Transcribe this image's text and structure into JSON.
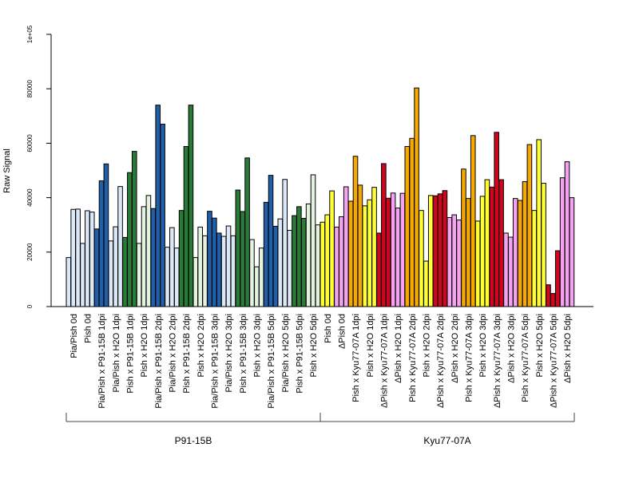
{
  "chart_data": {
    "type": "bar",
    "title": "",
    "ylabel": "Raw Signal",
    "ylim": [
      0,
      100000
    ],
    "yticks": [
      "0",
      "20000",
      "40000",
      "60000",
      "80000",
      "1e+05"
    ],
    "ytick_values": [
      0,
      20000,
      40000,
      60000,
      80000,
      100000
    ],
    "bars_per_group": 3,
    "categories": [
      "Pia/Pish 0d",
      "Pish 0d",
      "Pia/Pish x P91-15B 1dpi",
      "Pia/Pish x H2O 1dpi",
      "Pish x P91-15B 1dpi",
      "Pish x H2O 1dpi",
      "Pia/Pish x P91-15B 2dpi",
      "Pia/Pish x H2O 2dpi",
      "Pish x P91-15B 2dpi",
      "Pish x H2O 2dpi",
      "Pia/Pish x P91-15B 3dpi",
      "Pia/Pish x H2O 3dpi",
      "Pish x P91-15B 3dpi",
      "Pish x H2O 3dpi",
      "Pia/Pish x P91-15B 5dpi",
      "Pia/Pish x H2O 5dpi",
      "Pish x P91-15B 5dpi",
      "Pish x H2O 5dpi",
      "Pish 0d",
      "ΔPish 0d",
      "Pish x Kyu77-07A 1dpi",
      "Pish x H2O 1dpi",
      "ΔPish x Kyu77-07A 1dpi",
      "ΔPish x H2O 1dpi",
      "Pish x Kyu77-07A 2dpi",
      "Pish x H2O 2dpi",
      "ΔPish x Kyu77-07A 2dpi",
      "ΔPish x H2O 2dpi",
      "Pish x Kyu77-07A 3dpi",
      "Pish x H2O 3dpi",
      "ΔPish x Kyu77-07A 3dpi",
      "ΔPish x H2O 3dpi",
      "Pish x Kyu77-07A 5dpi",
      "Pish x H2O 5dpi",
      "ΔPish x Kyu77-07A 5dpi",
      "ΔPish x H2O 5dpi"
    ],
    "group_colors": [
      "#dbe8f8",
      "#dbe8f8",
      "#2060ab",
      "#dbe8f8",
      "#2a7a38",
      "#e4f2e0",
      "#2060ab",
      "#dbe8f8",
      "#2a7a38",
      "#e4f2e0",
      "#2060ab",
      "#dbe8f8",
      "#2a7a38",
      "#e4f2e0",
      "#2060ab",
      "#dbe8f8",
      "#2a7a38",
      "#e4f2e0",
      "#ffff33",
      "#f5a3f0",
      "#f5a800",
      "#ffff33",
      "#d0061e",
      "#f5a3f0",
      "#f5a800",
      "#ffff33",
      "#d0061e",
      "#f5a3f0",
      "#f5a800",
      "#ffff33",
      "#d0061e",
      "#f5a3f0",
      "#f5a800",
      "#ffff33",
      "#d0061e",
      "#f5a3f0"
    ],
    "values": [
      [
        18000,
        35700,
        35800
      ],
      [
        23200,
        35200,
        34700
      ],
      [
        28500,
        46200,
        52400
      ],
      [
        24100,
        29300,
        44100
      ],
      [
        25400,
        49200,
        57000
      ],
      [
        23200,
        36700,
        40800
      ],
      [
        36000,
        74000,
        67000
      ],
      [
        21800,
        29000,
        21500
      ],
      [
        35300,
        58800,
        74000
      ],
      [
        18000,
        29200,
        26000
      ],
      [
        35000,
        32500,
        27000
      ],
      [
        25800,
        29600,
        26000
      ],
      [
        42800,
        34900,
        54600
      ],
      [
        24600,
        14600,
        21500
      ],
      [
        38300,
        48200,
        29500
      ],
      [
        32200,
        46700,
        28000
      ],
      [
        33400,
        36700,
        32400
      ],
      [
        37700,
        48400,
        30000
      ],
      [
        31000,
        33700,
        42500
      ],
      [
        29200,
        33000,
        44000
      ],
      [
        38700,
        55200,
        44600
      ],
      [
        37000,
        39200,
        43800
      ],
      [
        27000,
        52500,
        39800
      ],
      [
        41700,
        36200,
        41600
      ],
      [
        58800,
        61800,
        80300
      ],
      [
        35300,
        16700,
        40800
      ],
      [
        40700,
        41400,
        42600
      ],
      [
        32700,
        33700,
        31800
      ],
      [
        50500,
        39700,
        62800
      ],
      [
        31400,
        40500,
        46600
      ],
      [
        43900,
        64000,
        46600
      ],
      [
        27000,
        25500,
        39700
      ],
      [
        39000,
        45900,
        59500
      ],
      [
        35300,
        61300,
        45300
      ],
      [
        8000,
        4800,
        20500
      ],
      [
        47300,
        53200,
        40000
      ]
    ],
    "group_labels": [
      "P91-15B",
      "Kyu77-07A"
    ],
    "group_ranges": [
      [
        0,
        17
      ],
      [
        18,
        35
      ]
    ]
  }
}
